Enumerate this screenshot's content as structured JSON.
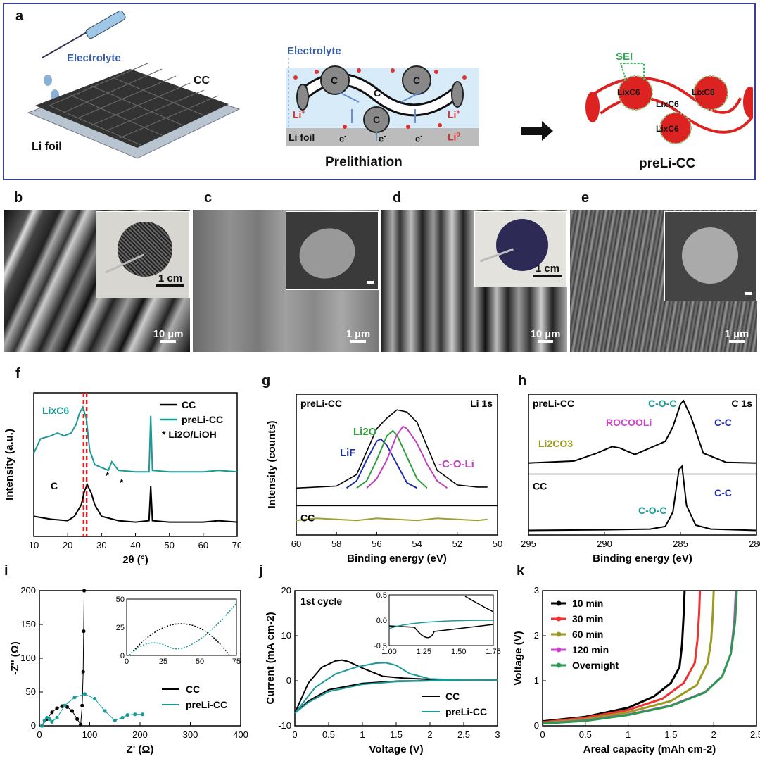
{
  "panel_a": {
    "letter": "a",
    "electrolyte_left": "Electrolyte",
    "cc": "CC",
    "li_foil_left": "Li foil",
    "electrolyte_mid": "Electrolyte",
    "li_foil_mid": "Li foil",
    "prelithiation": "Prelithiation",
    "prelicc": "preLi-CC",
    "sei": "SEI",
    "c_label": "C",
    "li_plus": "Li",
    "li_plus_sup": "+",
    "e_minus": "e",
    "e_sup": "-",
    "li0": "Li",
    "li0_sup": "0",
    "lixc6": "LixC6"
  },
  "panels_sem": [
    {
      "letter": "b",
      "scale_main": "10 µm",
      "scale_inset": "1 cm"
    },
    {
      "letter": "c",
      "scale_main": "1 µm",
      "scale_inset": ""
    },
    {
      "letter": "d",
      "scale_main": "10 µm",
      "scale_inset": "1 cm"
    },
    {
      "letter": "e",
      "scale_main": "1 µm",
      "scale_inset": ""
    }
  ],
  "chart_data": [
    {
      "panel": "f",
      "type": "line",
      "xlabel": "2θ (°)",
      "ylabel": "Intensity (a.u.)",
      "xlim": [
        10,
        70
      ],
      "xticks": [
        10,
        20,
        30,
        40,
        50,
        60,
        70
      ],
      "series": [
        {
          "name": "CC",
          "color": "#000000",
          "x": [
            10,
            15,
            20,
            22,
            24,
            25,
            25.8,
            27,
            28,
            30,
            35,
            40,
            44,
            44.5,
            45,
            50,
            60,
            64.5,
            70
          ],
          "y": [
            0.24,
            0.22,
            0.21,
            0.24,
            0.32,
            0.42,
            0.46,
            0.4,
            0.32,
            0.24,
            0.21,
            0.2,
            0.21,
            0.45,
            0.21,
            0.2,
            0.2,
            0.21,
            0.2
          ]
        },
        {
          "name": "preLi-CC",
          "color": "#1a9a96",
          "x": [
            10,
            12,
            15,
            17,
            19,
            21,
            22.5,
            23.5,
            24.5,
            25.5,
            26.5,
            28,
            30,
            32,
            33,
            35,
            40,
            44,
            44.5,
            45,
            50,
            60,
            64.5,
            70
          ],
          "y": [
            0.68,
            0.78,
            0.8,
            0.82,
            0.8,
            0.82,
            0.88,
            0.96,
            1.0,
            0.92,
            0.7,
            0.6,
            0.58,
            0.56,
            0.62,
            0.56,
            0.55,
            0.55,
            0.94,
            0.56,
            0.55,
            0.55,
            0.56,
            0.55
          ]
        }
      ],
      "legend": [
        "CC",
        "preLi-CC",
        "* Li2O/LiOH"
      ],
      "annotations": [
        "LixC6",
        "C",
        "*",
        "*"
      ]
    },
    {
      "panel": "g",
      "type": "line",
      "xlabel": "Binding energy (eV)",
      "ylabel": "Intensity (counts)",
      "xlim": [
        60,
        50
      ],
      "xticks": [
        60,
        58,
        56,
        54,
        52,
        50
      ],
      "labels": {
        "top": "preLi-CC",
        "core": "Li 1s",
        "bottom": "CC"
      },
      "series": [
        {
          "name": "preLi-CC",
          "color": "#000000",
          "x": [
            60,
            59,
            58,
            57,
            56.5,
            56,
            55.5,
            55,
            54.5,
            54,
            53.5,
            53,
            52,
            51,
            50.5
          ],
          "y": [
            0.05,
            0.06,
            0.07,
            0.18,
            0.4,
            0.62,
            0.72,
            0.8,
            0.78,
            0.68,
            0.45,
            0.22,
            0.08,
            0.06,
            0.06
          ]
        },
        {
          "name": "LiF",
          "color": "#1f2ea8",
          "x": [
            57.5,
            57,
            56.5,
            56,
            55.8,
            55.5,
            55,
            54.5,
            54
          ],
          "y": [
            0.05,
            0.12,
            0.32,
            0.5,
            0.52,
            0.46,
            0.28,
            0.1,
            0.05
          ]
        },
        {
          "name": "Li2O",
          "color": "#2ea03a",
          "x": [
            57,
            56.5,
            56,
            55.5,
            55.2,
            55,
            54.5,
            54,
            53.5
          ],
          "y": [
            0.05,
            0.12,
            0.32,
            0.55,
            0.6,
            0.56,
            0.35,
            0.14,
            0.05
          ]
        },
        {
          "name": "-C-O-Li",
          "color": "#c040c0",
          "x": [
            56.5,
            56,
            55.5,
            55,
            54.7,
            54.5,
            54,
            53.5,
            53,
            52.5
          ],
          "y": [
            0.05,
            0.14,
            0.32,
            0.56,
            0.64,
            0.62,
            0.48,
            0.28,
            0.12,
            0.05
          ]
        },
        {
          "name": "CC",
          "color": "#9aa038",
          "x": [
            60,
            59,
            58,
            57,
            56,
            55,
            54,
            53,
            52,
            51,
            50.5
          ],
          "y": [
            -0.26,
            -0.24,
            -0.25,
            -0.26,
            -0.24,
            -0.25,
            -0.26,
            -0.24,
            -0.25,
            -0.26,
            -0.25
          ]
        }
      ],
      "annotations": [
        "Li2O",
        "LiF",
        "-C-O-Li"
      ]
    },
    {
      "panel": "h",
      "type": "line",
      "xlabel": "Binding energy (eV)",
      "ylabel": "Intensity (counts)",
      "xlim": [
        295,
        280
      ],
      "xticks": [
        295,
        290,
        285,
        280
      ],
      "labels": {
        "top": "preLi-CC",
        "core": "C 1s",
        "bottom": "CC"
      },
      "series": [
        {
          "name": "preLi-CC",
          "color": "#000000",
          "x": [
            295,
            292,
            290.5,
            289.5,
            289,
            288,
            287,
            286,
            285.5,
            285,
            284.8,
            284.3,
            283.5,
            282,
            280
          ],
          "y": [
            0.05,
            0.08,
            0.2,
            0.3,
            0.28,
            0.18,
            0.28,
            0.38,
            0.6,
            0.95,
            1.0,
            0.75,
            0.2,
            0.06,
            0.05
          ]
        },
        {
          "name": "CC",
          "color": "#000000",
          "x": [
            295,
            290,
            287,
            286,
            285.5,
            285.1,
            284.9,
            284.6,
            284,
            283,
            280
          ],
          "y": [
            -0.98,
            -0.97,
            -0.96,
            -0.92,
            -0.7,
            -0.05,
            0.0,
            -0.6,
            -0.9,
            -0.96,
            -0.98
          ]
        }
      ],
      "annotations": [
        "Li2CO3",
        "ROCOOLi",
        "C-O-C",
        "C-C",
        "C-O-C",
        "C-C"
      ]
    },
    {
      "panel": "i",
      "type": "scatter",
      "xlabel": "Z' (Ω)",
      "ylabel": "-Z'' (Ω)",
      "xlim": [
        0,
        400
      ],
      "ylim": [
        0,
        200
      ],
      "xticks": [
        0,
        100,
        200,
        300,
        400
      ],
      "yticks": [
        0,
        50,
        100,
        150,
        200
      ],
      "series": [
        {
          "name": "CC",
          "color": "#000000",
          "x": [
            5,
            15,
            25,
            35,
            45,
            55,
            65,
            75,
            82,
            85,
            87,
            88,
            89
          ],
          "y": [
            0,
            10,
            20,
            26,
            29,
            28,
            22,
            10,
            2,
            30,
            80,
            140,
            200
          ]
        },
        {
          "name": "preLi-CC",
          "color": "#1a9a96",
          "x": [
            5,
            10,
            15,
            20,
            25,
            35,
            50,
            70,
            90,
            110,
            130,
            150,
            165,
            175,
            190,
            205
          ],
          "y": [
            0,
            8,
            12,
            10,
            6,
            12,
            30,
            42,
            47,
            40,
            22,
            8,
            12,
            16,
            17,
            17
          ]
        }
      ],
      "inset": {
        "xlim": [
          0,
          75
        ],
        "ylim": [
          0,
          50
        ],
        "xticks": [
          0,
          25,
          50,
          75
        ],
        "yticks": [
          0,
          25,
          50
        ]
      }
    },
    {
      "panel": "j",
      "type": "line",
      "xlabel": "Voltage (V)",
      "ylabel": "Current (mA cm-2)",
      "xlim": [
        0,
        3.0
      ],
      "ylim": [
        -10,
        20
      ],
      "xticks": [
        0.0,
        0.5,
        1.0,
        1.5,
        2.0,
        2.5,
        3.0
      ],
      "yticks": [
        -10,
        0,
        10,
        20
      ],
      "title_note": "1st cycle",
      "series": [
        {
          "name": "CC",
          "color": "#000000",
          "x": [
            0.0,
            0.2,
            0.4,
            0.6,
            0.7,
            0.8,
            1.0,
            1.3,
            1.6,
            2.0,
            2.5,
            3.0,
            2.5,
            2.0,
            1.5,
            1.0,
            0.5,
            0.2,
            0.0
          ],
          "y": [
            -7.2,
            -0.5,
            3.0,
            4.4,
            4.6,
            4.2,
            2.8,
            1.0,
            0.6,
            0.3,
            0.2,
            0.2,
            0.1,
            0.0,
            -0.1,
            -0.6,
            -2.0,
            -4.5,
            -7.2
          ]
        },
        {
          "name": "preLi-CC",
          "color": "#1a9a96",
          "x": [
            0.0,
            0.3,
            0.6,
            0.9,
            1.2,
            1.35,
            1.5,
            1.7,
            2.0,
            2.5,
            3.0,
            2.5,
            2.0,
            1.5,
            1.0,
            0.5,
            0.2,
            0.0
          ],
          "y": [
            -7.2,
            -1.5,
            1.5,
            3.0,
            3.9,
            4.0,
            3.4,
            1.6,
            0.4,
            0.2,
            0.2,
            0.1,
            0.0,
            -0.2,
            -0.8,
            -2.4,
            -4.8,
            -7.2
          ]
        }
      ],
      "inset": {
        "xlim": [
          1.0,
          1.75
        ],
        "ylim": [
          -0.5,
          0.5
        ],
        "xticks": [
          1.0,
          1.25,
          1.5,
          1.75
        ],
        "yticks": [
          -0.5,
          0.0,
          0.5
        ]
      }
    },
    {
      "panel": "k",
      "type": "line",
      "xlabel": "Areal capacity (mAh cm-2)",
      "ylabel": "Voltage (V)",
      "xlim": [
        0,
        2.5
      ],
      "ylim": [
        0,
        3
      ],
      "xticks": [
        0.0,
        0.5,
        1.0,
        1.5,
        2.0,
        2.5
      ],
      "yticks": [
        0,
        1,
        2,
        3
      ],
      "series": [
        {
          "name": "10 min",
          "color": "#000000",
          "x": [
            0,
            0.5,
            1.0,
            1.3,
            1.5,
            1.6,
            1.63,
            1.65,
            1.66
          ],
          "y": [
            0.1,
            0.2,
            0.4,
            0.65,
            0.95,
            1.3,
            1.8,
            2.5,
            3.0
          ]
        },
        {
          "name": "30 min",
          "color": "#ee3333",
          "x": [
            0,
            0.5,
            1.0,
            1.4,
            1.65,
            1.78,
            1.81,
            1.83,
            1.84
          ],
          "y": [
            0.08,
            0.18,
            0.35,
            0.6,
            0.95,
            1.4,
            1.9,
            2.5,
            3.0
          ]
        },
        {
          "name": "60 min",
          "color": "#9a9a20",
          "x": [
            0,
            0.5,
            1.0,
            1.5,
            1.8,
            1.93,
            1.97,
            1.99,
            2.0
          ],
          "y": [
            0.06,
            0.15,
            0.3,
            0.55,
            0.9,
            1.4,
            1.9,
            2.5,
            3.0
          ]
        },
        {
          "name": "120 min",
          "color": "#cc44cc",
          "x": [
            0,
            0.5,
            1.0,
            1.5,
            1.9,
            2.1,
            2.2,
            2.24,
            2.26
          ],
          "y": [
            0.05,
            0.12,
            0.25,
            0.45,
            0.75,
            1.1,
            1.6,
            2.3,
            3.0
          ]
        },
        {
          "name": "Overnight",
          "color": "#2a9a50",
          "x": [
            0,
            0.5,
            1.0,
            1.5,
            1.9,
            2.1,
            2.2,
            2.25,
            2.27
          ],
          "y": [
            0.05,
            0.11,
            0.24,
            0.44,
            0.74,
            1.1,
            1.6,
            2.3,
            3.0
          ]
        }
      ]
    }
  ]
}
